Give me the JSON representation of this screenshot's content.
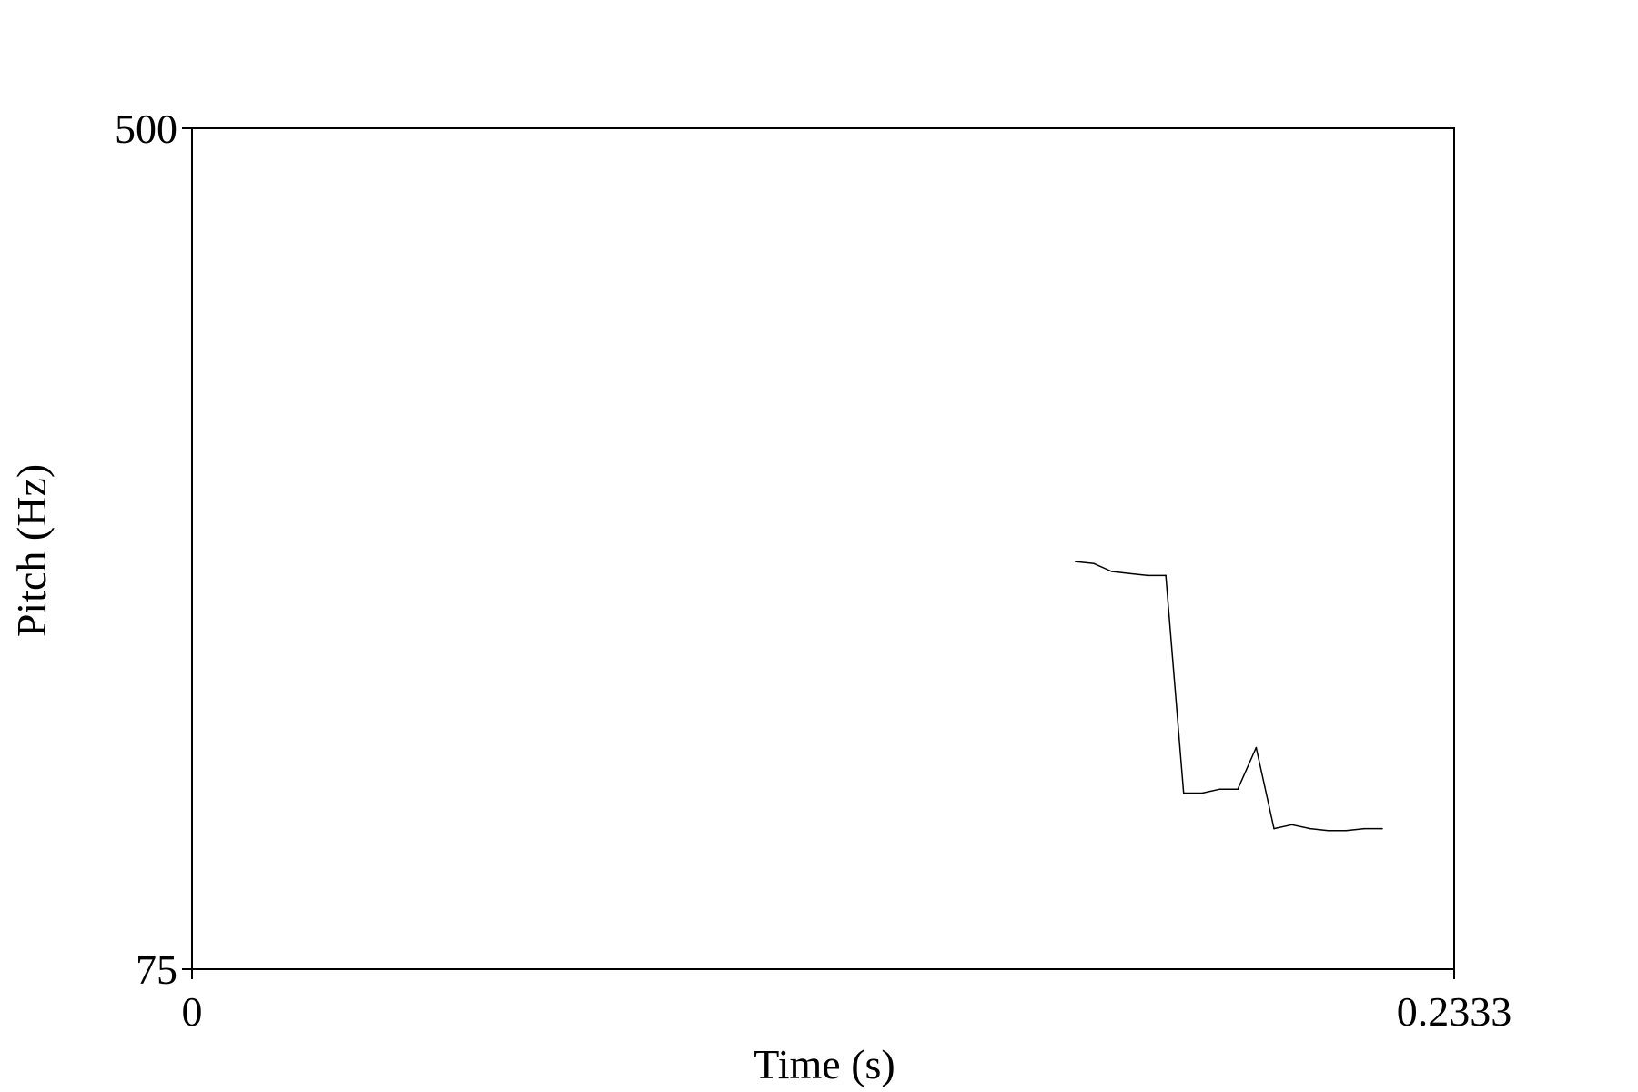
{
  "chart_data": {
    "type": "line",
    "title": "",
    "xlabel": "Time (s)",
    "ylabel": "Pitch (Hz)",
    "xlim": [
      0,
      0.2333
    ],
    "ylim": [
      75,
      500
    ],
    "x_ticks": [
      {
        "value": 0,
        "label": "0"
      },
      {
        "value": 0.2333,
        "label": "0.2333"
      }
    ],
    "y_ticks": [
      {
        "value": 75,
        "label": "75"
      },
      {
        "value": 500,
        "label": "500"
      }
    ],
    "grid": false,
    "series": [
      {
        "color": "#000000",
        "x": [
          0.1633,
          0.1667,
          0.17,
          0.1733,
          0.1767,
          0.18,
          0.1833,
          0.1867,
          0.19,
          0.1933,
          0.1967,
          0.2,
          0.2033,
          0.2067,
          0.21,
          0.2133,
          0.2167,
          0.22
        ],
        "values": [
          281,
          280,
          276,
          275,
          274,
          274,
          164,
          164,
          166,
          166,
          187,
          146,
          148,
          146,
          145,
          145,
          146,
          146
        ]
      }
    ]
  }
}
